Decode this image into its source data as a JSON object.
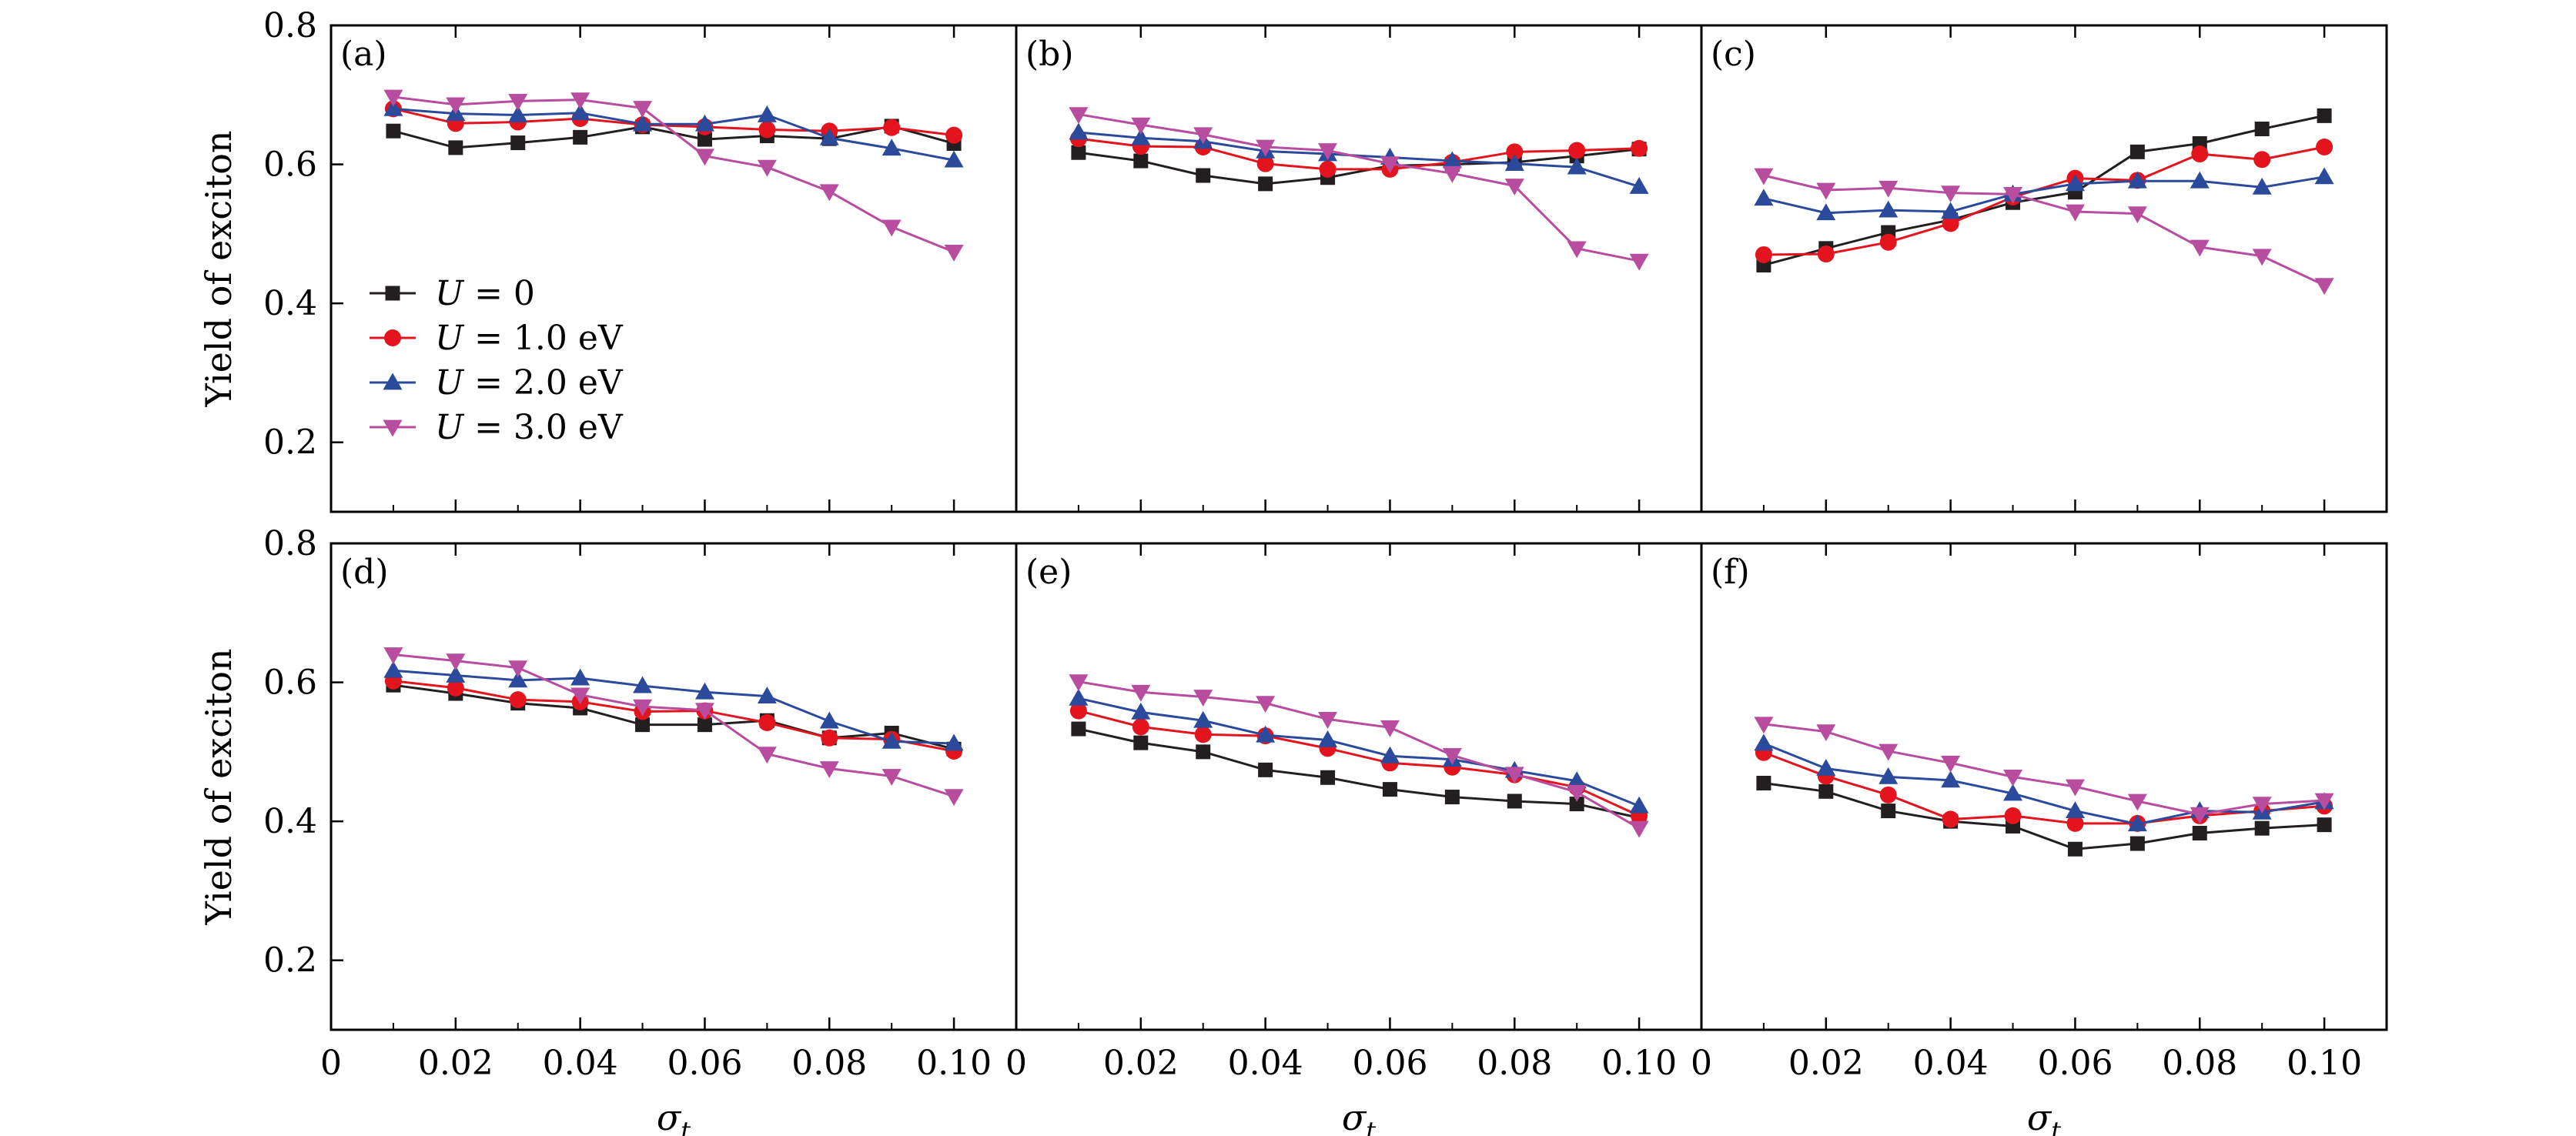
{
  "chart_data": {
    "type": "line",
    "layout": "2x3 grid of panels with shared axes",
    "ylabel": "Yield of exciton",
    "xlabel": "σ",
    "xlabel_subscript": "t",
    "xlim": [
      0,
      0.11
    ],
    "ylim": [
      0.1,
      0.8
    ],
    "x_ticks": [
      0,
      0.02,
      0.04,
      0.06,
      0.08,
      0.1
    ],
    "x_tick_labels": [
      "0",
      "0.02",
      "0.04",
      "0.06",
      "0.08",
      "0.10"
    ],
    "y_ticks": [
      0.2,
      0.4,
      0.6,
      0.8
    ],
    "y_tick_labels": [
      "0.2",
      "0.4",
      "0.6",
      "0.8"
    ],
    "x": [
      0.01,
      0.02,
      0.03,
      0.04,
      0.05,
      0.06,
      0.07,
      0.08,
      0.09,
      0.1
    ],
    "legend_panel": 0,
    "legend_position": "lower-left",
    "series_styles": [
      {
        "name": "U = 0",
        "var": "U",
        "eq": " = 0",
        "color": "#231f20",
        "marker": "square"
      },
      {
        "name": "U = 1.0 eV",
        "var": "U",
        "eq": " = 1.0 eV",
        "color": "#e3141d",
        "marker": "circle"
      },
      {
        "name": "U = 2.0 eV",
        "var": "U",
        "eq": " = 2.0 eV",
        "color": "#2b4a9b",
        "marker": "triangle-up"
      },
      {
        "name": "U = 3.0 eV",
        "var": "U",
        "eq": " = 3.0 eV",
        "color": "#b84c9e",
        "marker": "triangle-down"
      }
    ],
    "panels": [
      {
        "label": "(a)",
        "series": [
          {
            "name": "U = 0",
            "values": [
              0.648,
              0.624,
              0.631,
              0.639,
              0.654,
              0.636,
              0.641,
              0.637,
              0.655,
              0.63
            ]
          },
          {
            "name": "U = 1.0 eV",
            "values": [
              0.68,
              0.659,
              0.661,
              0.666,
              0.657,
              0.654,
              0.65,
              0.648,
              0.653,
              0.642
            ]
          },
          {
            "name": "U = 2.0 eV",
            "values": [
              0.68,
              0.673,
              0.671,
              0.674,
              0.658,
              0.658,
              0.671,
              0.638,
              0.623,
              0.606
            ]
          },
          {
            "name": "U = 3.0 eV",
            "values": [
              0.697,
              0.686,
              0.691,
              0.693,
              0.681,
              0.612,
              0.596,
              0.561,
              0.51,
              0.474
            ]
          }
        ]
      },
      {
        "label": "(b)",
        "series": [
          {
            "name": "U = 0",
            "values": [
              0.617,
              0.605,
              0.584,
              0.572,
              0.581,
              0.598,
              0.6,
              0.603,
              0.612,
              0.622
            ]
          },
          {
            "name": "U = 1.0 eV",
            "values": [
              0.637,
              0.626,
              0.625,
              0.601,
              0.593,
              0.593,
              0.603,
              0.618,
              0.62,
              0.623
            ]
          },
          {
            "name": "U = 2.0 eV",
            "values": [
              0.646,
              0.638,
              0.633,
              0.619,
              0.615,
              0.61,
              0.605,
              0.601,
              0.596,
              0.568
            ]
          },
          {
            "name": "U = 3.0 eV",
            "values": [
              0.672,
              0.657,
              0.643,
              0.625,
              0.62,
              0.601,
              0.587,
              0.569,
              0.479,
              0.461
            ]
          }
        ]
      },
      {
        "label": "(c)",
        "series": [
          {
            "name": "U = 0",
            "values": [
              0.455,
              0.479,
              0.502,
              0.52,
              0.545,
              0.56,
              0.618,
              0.63,
              0.651,
              0.67
            ]
          },
          {
            "name": "U = 1.0 eV",
            "values": [
              0.47,
              0.471,
              0.488,
              0.515,
              0.553,
              0.58,
              0.577,
              0.615,
              0.607,
              0.625
            ]
          },
          {
            "name": "U = 2.0 eV",
            "values": [
              0.551,
              0.53,
              0.534,
              0.532,
              0.557,
              0.572,
              0.576,
              0.576,
              0.567,
              0.582
            ]
          },
          {
            "name": "U = 3.0 eV",
            "values": [
              0.584,
              0.563,
              0.566,
              0.559,
              0.557,
              0.532,
              0.529,
              0.481,
              0.468,
              0.426
            ]
          }
        ]
      },
      {
        "label": "(d)",
        "series": [
          {
            "name": "U = 0",
            "values": [
              0.596,
              0.584,
              0.57,
              0.563,
              0.539,
              0.539,
              0.545,
              0.52,
              0.527,
              0.504
            ]
          },
          {
            "name": "U = 1.0 eV",
            "values": [
              0.602,
              0.592,
              0.575,
              0.572,
              0.558,
              0.559,
              0.542,
              0.52,
              0.518,
              0.501
            ]
          },
          {
            "name": "U = 2.0 eV",
            "values": [
              0.617,
              0.61,
              0.603,
              0.606,
              0.595,
              0.586,
              0.58,
              0.544,
              0.515,
              0.512
            ]
          },
          {
            "name": "U = 3.0 eV",
            "values": [
              0.64,
              0.631,
              0.621,
              0.582,
              0.565,
              0.56,
              0.497,
              0.476,
              0.465,
              0.436
            ]
          }
        ]
      },
      {
        "label": "(e)",
        "series": [
          {
            "name": "U = 0",
            "values": [
              0.533,
              0.513,
              0.5,
              0.474,
              0.463,
              0.446,
              0.435,
              0.429,
              0.425,
              0.405
            ]
          },
          {
            "name": "U = 1.0 eV",
            "values": [
              0.559,
              0.536,
              0.525,
              0.523,
              0.505,
              0.484,
              0.478,
              0.467,
              0.449,
              0.408
            ]
          },
          {
            "name": "U = 2.0 eV",
            "values": [
              0.577,
              0.557,
              0.545,
              0.524,
              0.517,
              0.494,
              0.489,
              0.473,
              0.458,
              0.422
            ]
          },
          {
            "name": "U = 3.0 eV",
            "values": [
              0.601,
              0.586,
              0.579,
              0.57,
              0.547,
              0.535,
              0.495,
              0.468,
              0.442,
              0.39
            ]
          }
        ]
      },
      {
        "label": "(f)",
        "series": [
          {
            "name": "U = 0",
            "values": [
              0.455,
              0.443,
              0.415,
              0.4,
              0.393,
              0.36,
              0.368,
              0.383,
              0.39,
              0.395
            ]
          },
          {
            "name": "U = 1.0 eV",
            "values": [
              0.499,
              0.465,
              0.438,
              0.403,
              0.408,
              0.397,
              0.397,
              0.408,
              0.415,
              0.422
            ]
          },
          {
            "name": "U = 2.0 eV",
            "values": [
              0.512,
              0.476,
              0.464,
              0.459,
              0.44,
              0.415,
              0.396,
              0.415,
              0.413,
              0.428
            ]
          },
          {
            "name": "U = 3.0 eV",
            "values": [
              0.54,
              0.529,
              0.501,
              0.484,
              0.464,
              0.45,
              0.429,
              0.41,
              0.425,
              0.43
            ]
          }
        ]
      }
    ]
  }
}
